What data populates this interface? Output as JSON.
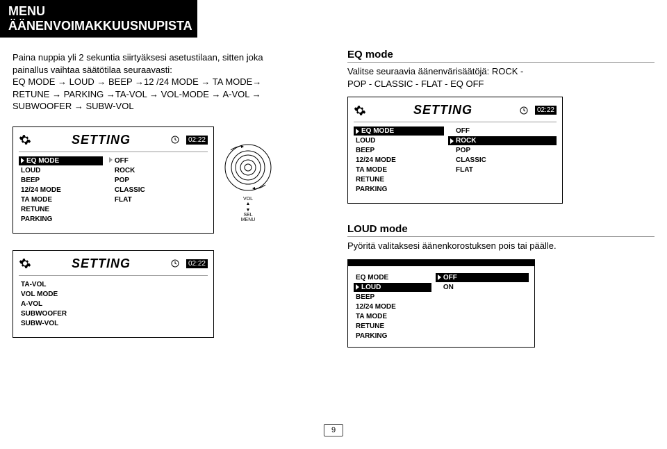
{
  "header": "MENU ÄÄNENVOIMAKKUUSNUPISTA",
  "left": {
    "para_lines": [
      "Paina nuppia yli 2 sekuntia siirtyäksesi asetustilaan, sitten joka",
      "painallus vaihtaa säätötilaa seuraavasti:",
      "EQ MODE → LOUD → BEEP →12 /24 MODE → TA  MODE→",
      "RETUNE → PARKING →TA-VOL → VOL-MODE → A-VOL →",
      "SUBWOOFER → SUBW-VOL"
    ],
    "panel1": {
      "title": "SETTING",
      "time": "02:22",
      "menu": [
        "EQ MODE",
        "LOUD",
        "BEEP",
        "12/24 MODE",
        "TA MODE",
        "RETUNE",
        "PARKING"
      ],
      "menu_highlight_index": 0,
      "values": [
        "OFF",
        "ROCK",
        "POP",
        "CLASSIC",
        "FLAT"
      ],
      "value_highlights": []
    },
    "panel2": {
      "title": "SETTING",
      "time": "02:22",
      "menu": [
        "TA-VOL",
        "VOL MODE",
        "A-VOL",
        "SUBWOOFER",
        "SUBW-VOL"
      ],
      "menu_highlight_index": -1,
      "values": [],
      "value_highlights": []
    },
    "knob": {
      "top_label": "VOL",
      "bottom_label1": "SEL",
      "bottom_label2": "MENU"
    }
  },
  "right": {
    "eq_title": "EQ mode",
    "eq_para_lines": [
      "Valitse seuraavia äänenvärisäätöjä: ROCK -",
      "POP -  CLASSIC  - FLAT - EQ OFF"
    ],
    "panel_eq": {
      "title": "SETTING",
      "time": "02:22",
      "menu": [
        "EQ MODE",
        "LOUD",
        "BEEP",
        "12/24 MODE",
        "TA MODE",
        "RETUNE",
        "PARKING"
      ],
      "menu_highlight_index": 0,
      "values": [
        "OFF",
        "ROCK",
        "POP",
        "CLASSIC",
        "FLAT"
      ],
      "value_highlights": [
        1
      ]
    },
    "loud_title": "LOUD mode",
    "loud_para": "Pyöritä valitaksesi äänenkorostuksen pois tai päälle.",
    "panel_loud": {
      "menu": [
        "EQ MODE",
        "LOUD",
        "BEEP",
        "12/24 MODE",
        "TA MODE",
        "RETUNE",
        "PARKING"
      ],
      "menu_highlight_index": 1,
      "values": [
        "OFF",
        "ON"
      ],
      "value_highlights": [
        0
      ]
    }
  },
  "page_number": "9",
  "colors": {
    "black": "#000000",
    "white": "#ffffff",
    "gray": "#999999"
  }
}
